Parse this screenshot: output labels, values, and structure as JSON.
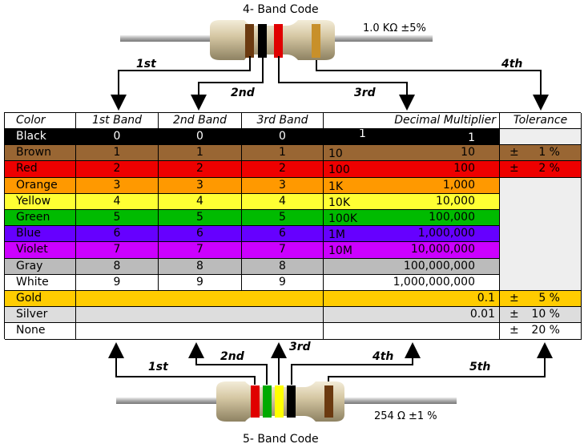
{
  "top": {
    "title": "4- Band Code",
    "value": "1.0 KΩ  ±5%",
    "labels": [
      "1st",
      "2nd",
      "3rd",
      "4th"
    ],
    "bands": [
      "#6b3a10",
      "#000000",
      "#e00000",
      "#c8902a"
    ]
  },
  "bottom": {
    "title": "5- Band Code",
    "value": "254 Ω  ±1 %",
    "labels": [
      "1st",
      "2nd",
      "3rd",
      "4th",
      "5th"
    ],
    "bands": [
      "#e00000",
      "#00aa00",
      "#ffff00",
      "#000000",
      "#6b3a10"
    ]
  },
  "table": {
    "headers": [
      "Color",
      "1st Band",
      "2nd Band",
      "3rd Band",
      "Decimal Multiplier",
      "Tolerance"
    ],
    "rows": [
      {
        "color": "Black",
        "bg": "#000000",
        "fg": "#ffffff",
        "b1": "0",
        "b2": "0",
        "b3": "0",
        "mult_short": "1",
        "mult": "1",
        "tol": ""
      },
      {
        "color": "Brown",
        "bg": "#996633",
        "fg": "#000000",
        "b1": "1",
        "b2": "1",
        "b3": "1",
        "mult_short": "10",
        "mult": "10",
        "tol": "1 %"
      },
      {
        "color": "Red",
        "bg": "#ee0000",
        "fg": "#000000",
        "b1": "2",
        "b2": "2",
        "b3": "2",
        "mult_short": "100",
        "mult": "100",
        "tol": "2 %"
      },
      {
        "color": "Orange",
        "bg": "#ff9900",
        "fg": "#000000",
        "b1": "3",
        "b2": "3",
        "b3": "3",
        "mult_short": "1K",
        "mult": "1,000",
        "tol": ""
      },
      {
        "color": "Yellow",
        "bg": "#ffff33",
        "fg": "#000000",
        "b1": "4",
        "b2": "4",
        "b3": "4",
        "mult_short": "10K",
        "mult": "10,000",
        "tol": ""
      },
      {
        "color": "Green",
        "bg": "#00bb00",
        "fg": "#000000",
        "b1": "5",
        "b2": "5",
        "b3": "5",
        "mult_short": "100K",
        "mult": "100,000",
        "tol": ""
      },
      {
        "color": "Blue",
        "bg": "#6600ff",
        "fg": "#000000",
        "b1": "6",
        "b2": "6",
        "b3": "6",
        "mult_short": "1M",
        "mult": "1,000,000",
        "tol": ""
      },
      {
        "color": "Violet",
        "bg": "#cc00ff",
        "fg": "#000000",
        "b1": "7",
        "b2": "7",
        "b3": "7",
        "mult_short": "10M",
        "mult": "10,000,000",
        "tol": ""
      },
      {
        "color": "Gray",
        "bg": "#bbbbbb",
        "fg": "#000000",
        "b1": "8",
        "b2": "8",
        "b3": "8",
        "mult_short": "",
        "mult": "100,000,000",
        "tol": ""
      },
      {
        "color": "White",
        "bg": "#ffffff",
        "fg": "#000000",
        "b1": "9",
        "b2": "9",
        "b3": "9",
        "mult_short": "",
        "mult": "1,000,000,000",
        "tol": ""
      },
      {
        "color": "Gold",
        "bg": "#ffcc00",
        "fg": "#000000",
        "b1": "",
        "b2": "",
        "b3": "",
        "mult_short": "",
        "mult": "0.1",
        "tol": "5 %"
      },
      {
        "color": "Silver",
        "bg": "#dddddd",
        "fg": "#000000",
        "b1": "",
        "b2": "",
        "b3": "",
        "mult_short": "",
        "mult": "0.01",
        "tol": "10 %"
      },
      {
        "color": "None",
        "bg": "#ffffff",
        "fg": "#000000",
        "b1": "",
        "b2": "",
        "b3": "",
        "mult_short": "",
        "mult": "",
        "tol": "20 %"
      }
    ],
    "pm": "±"
  }
}
